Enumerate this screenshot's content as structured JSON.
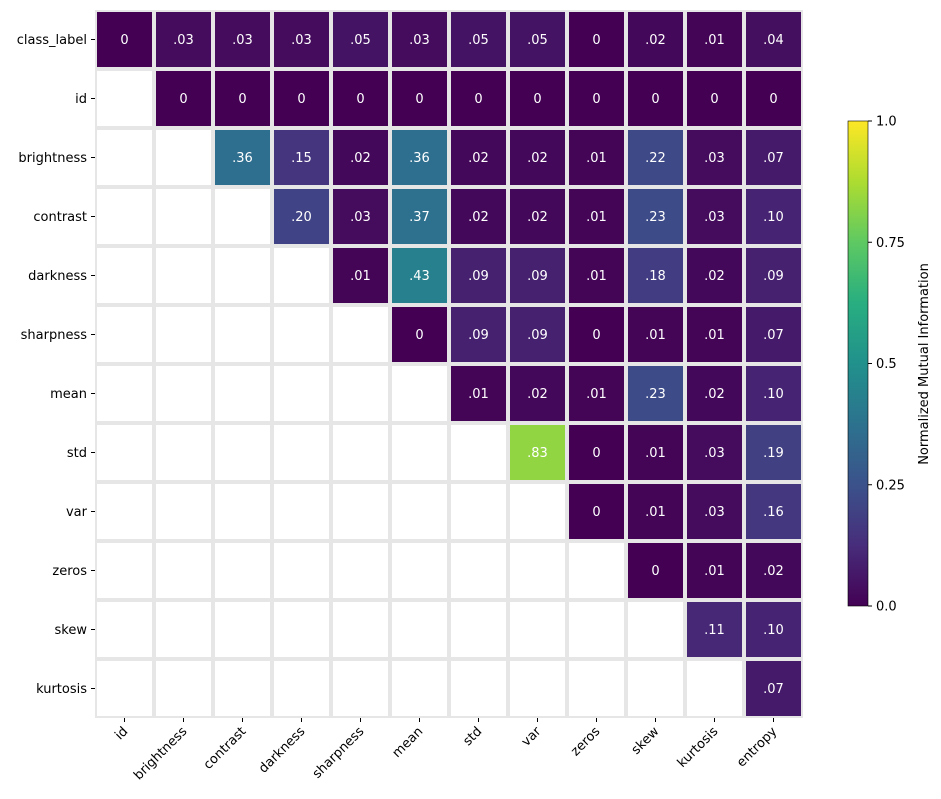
{
  "chart_data": {
    "type": "heatmap",
    "title": "",
    "row_labels": [
      "class_label",
      "id",
      "brightness",
      "contrast",
      "darkness",
      "sharpness",
      "mean",
      "std",
      "var",
      "zeros",
      "skew",
      "kurtosis"
    ],
    "col_labels": [
      "id",
      "brightness",
      "contrast",
      "darkness",
      "sharpness",
      "mean",
      "std",
      "var",
      "zeros",
      "skew",
      "kurtosis",
      "entropy"
    ],
    "values": [
      [
        0,
        0.03,
        0.03,
        0.03,
        0.05,
        0.03,
        0.05,
        0.05,
        0,
        0.02,
        0.01,
        0.04
      ],
      [
        null,
        0,
        0,
        0,
        0,
        0,
        0,
        0,
        0,
        0,
        0,
        0
      ],
      [
        null,
        null,
        0.36,
        0.15,
        0.02,
        0.36,
        0.02,
        0.02,
        0.01,
        0.22,
        0.03,
        0.07
      ],
      [
        null,
        null,
        null,
        0.2,
        0.03,
        0.37,
        0.02,
        0.02,
        0.01,
        0.23,
        0.03,
        0.1
      ],
      [
        null,
        null,
        null,
        null,
        0.01,
        0.43,
        0.09,
        0.09,
        0.01,
        0.18,
        0.02,
        0.09
      ],
      [
        null,
        null,
        null,
        null,
        null,
        0,
        0.09,
        0.09,
        0,
        0.01,
        0.01,
        0.07
      ],
      [
        null,
        null,
        null,
        null,
        null,
        null,
        0.01,
        0.02,
        0.01,
        0.23,
        0.02,
        0.1
      ],
      [
        null,
        null,
        null,
        null,
        null,
        null,
        null,
        0.83,
        0,
        0.01,
        0.03,
        0.19
      ],
      [
        null,
        null,
        null,
        null,
        null,
        null,
        null,
        null,
        0,
        0.01,
        0.03,
        0.16
      ],
      [
        null,
        null,
        null,
        null,
        null,
        null,
        null,
        null,
        null,
        0,
        0.01,
        0.02
      ],
      [
        null,
        null,
        null,
        null,
        null,
        null,
        null,
        null,
        null,
        null,
        0.11,
        0.1
      ],
      [
        null,
        null,
        null,
        null,
        null,
        null,
        null,
        null,
        null,
        null,
        null,
        0.07
      ]
    ],
    "cell_labels": [
      [
        "0",
        ".03",
        ".03",
        ".03",
        ".05",
        ".03",
        ".05",
        ".05",
        "0",
        ".02",
        ".01",
        ".04"
      ],
      [
        null,
        "0",
        "0",
        "0",
        "0",
        "0",
        "0",
        "0",
        "0",
        "0",
        "0",
        "0"
      ],
      [
        null,
        null,
        ".36",
        ".15",
        ".02",
        ".36",
        ".02",
        ".02",
        ".01",
        ".22",
        ".03",
        ".07"
      ],
      [
        null,
        null,
        null,
        ".20",
        ".03",
        ".37",
        ".02",
        ".02",
        ".01",
        ".23",
        ".03",
        ".10"
      ],
      [
        null,
        null,
        null,
        null,
        ".01",
        ".43",
        ".09",
        ".09",
        ".01",
        ".18",
        ".02",
        ".09"
      ],
      [
        null,
        null,
        null,
        null,
        null,
        "0",
        ".09",
        ".09",
        "0",
        ".01",
        ".01",
        ".07"
      ],
      [
        null,
        null,
        null,
        null,
        null,
        null,
        ".01",
        ".02",
        ".01",
        ".23",
        ".02",
        ".10"
      ],
      [
        null,
        null,
        null,
        null,
        null,
        null,
        null,
        ".83",
        "0",
        ".01",
        ".03",
        ".19"
      ],
      [
        null,
        null,
        null,
        null,
        null,
        null,
        null,
        null,
        "0",
        ".01",
        ".03",
        ".16"
      ],
      [
        null,
        null,
        null,
        null,
        null,
        null,
        null,
        null,
        null,
        "0",
        ".01",
        ".02"
      ],
      [
        null,
        null,
        null,
        null,
        null,
        null,
        null,
        null,
        null,
        null,
        ".11",
        ".10"
      ],
      [
        null,
        null,
        null,
        null,
        null,
        null,
        null,
        null,
        null,
        null,
        null,
        ".07"
      ]
    ],
    "colormap": "viridis",
    "vmin": 0,
    "vmax": 1,
    "colorbar": {
      "label": "Normalized Mutual Information",
      "ticks": [
        "0.0",
        "0.25",
        "0.5",
        "0.75",
        "1.0"
      ],
      "tick_values": [
        0,
        0.25,
        0.5,
        0.75,
        1.0
      ]
    },
    "grid_color": "#e6e6e6",
    "masked": "lower-triangle"
  }
}
